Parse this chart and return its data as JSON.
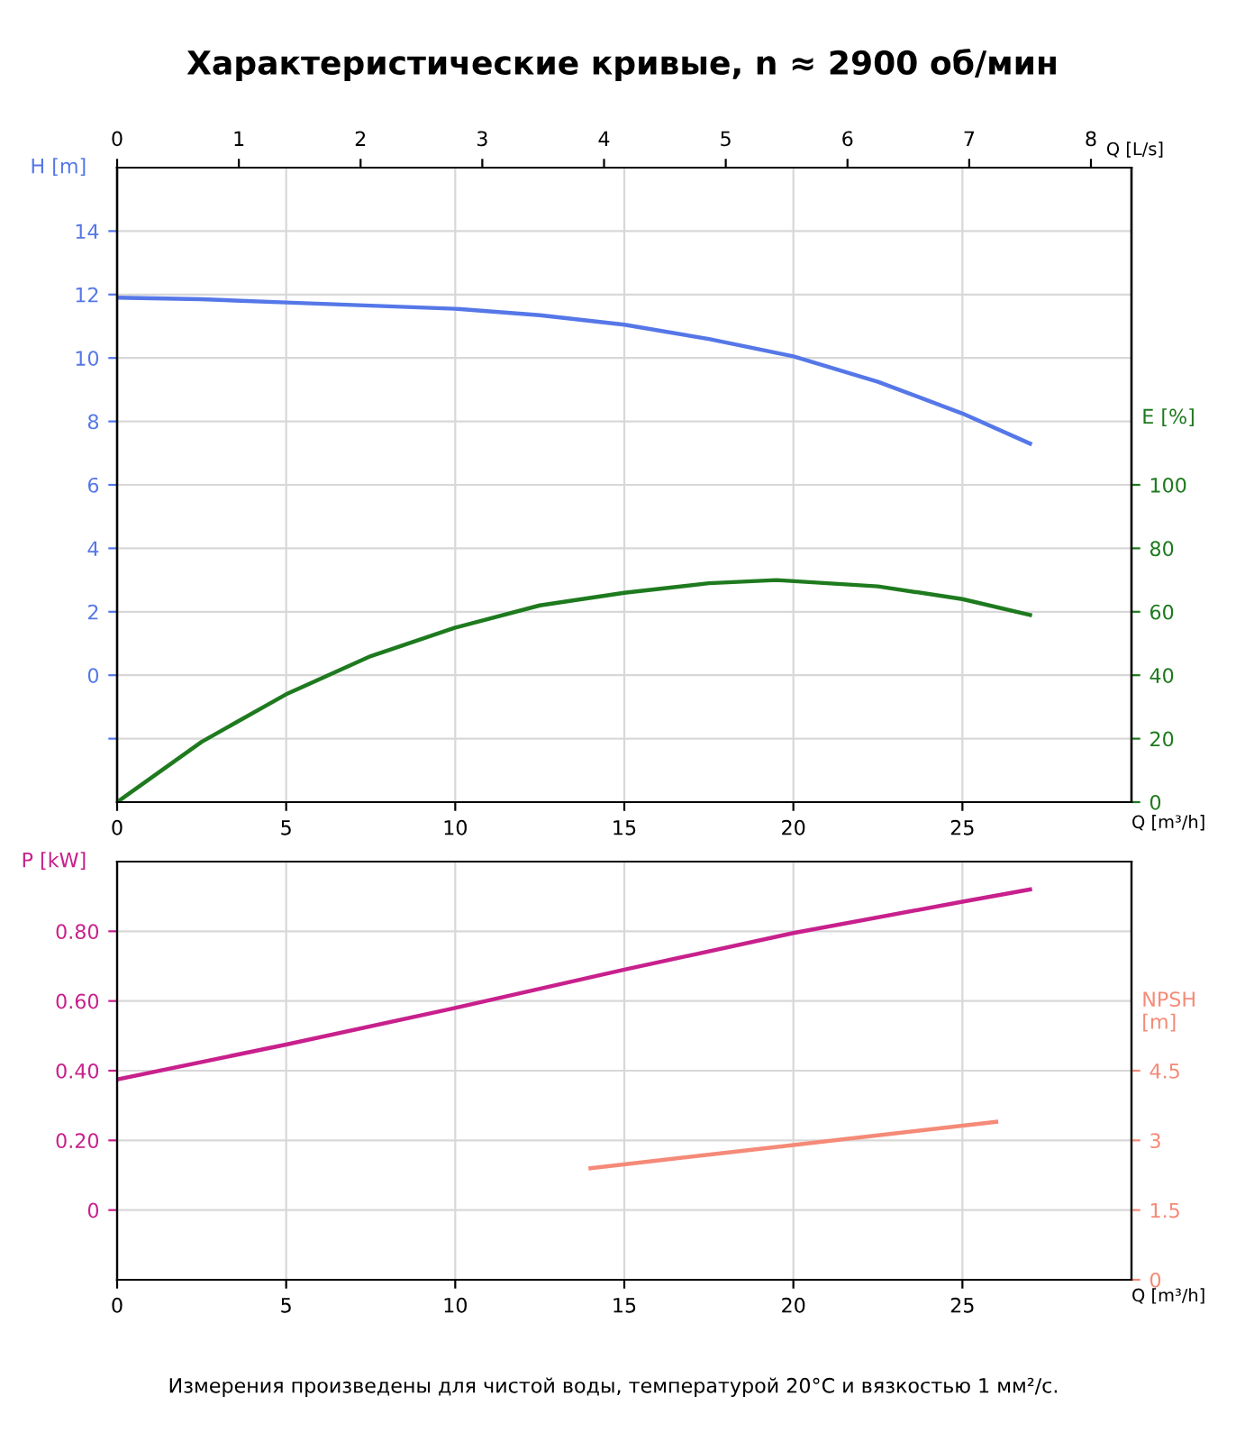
{
  "chart_data": [
    {
      "type": "line",
      "title": "Характеристические кривые, n ≈ 2900 об/мин",
      "xlabel": "Q [m³/h]",
      "x2label": "Q [L/s]",
      "ylabel": "H [m]",
      "y2label": "E [%]",
      "xlim": [
        0,
        30
      ],
      "xticks": [
        0,
        5,
        10,
        15,
        20,
        25
      ],
      "x2lim": [
        0,
        8.333
      ],
      "x2ticks": [
        0,
        1,
        2,
        3,
        4,
        5,
        6,
        7,
        8
      ],
      "ylim": [
        -4,
        16
      ],
      "yticks": [
        {
          "value": -2,
          "label": null
        },
        0,
        2,
        4,
        6,
        8,
        10,
        12,
        14
      ],
      "y2lim": [
        0,
        200
      ],
      "y2ticks": [
        0,
        20,
        40,
        60,
        80,
        100
      ],
      "grid": true,
      "legend": false,
      "series": [
        {
          "color": "#5577e8",
          "axis": "y",
          "x": [
            0,
            2.5,
            5,
            7.5,
            10,
            12.5,
            15,
            17.5,
            20,
            22.5,
            25,
            27
          ],
          "values": [
            11.9,
            11.85,
            11.75,
            11.65,
            11.55,
            11.35,
            11.05,
            10.6,
            10.05,
            9.25,
            8.25,
            7.3
          ]
        },
        {
          "color": "#1e7a1e",
          "axis": "y2",
          "x": [
            0,
            2.5,
            5,
            7.5,
            10,
            12.5,
            15,
            17.5,
            19.5,
            22.5,
            25,
            27
          ],
          "values": [
            0,
            19,
            34,
            46,
            55,
            62,
            66,
            69,
            70,
            68,
            64,
            59
          ]
        }
      ]
    },
    {
      "type": "line",
      "xlabel": "Q [m³/h]",
      "ylabel": "P [kW]",
      "y2label": "NPSH\n[m]",
      "xlim": [
        0,
        30
      ],
      "xticks": [
        0,
        5,
        10,
        15,
        20,
        25
      ],
      "ylim": [
        -0.2,
        1.0
      ],
      "yticks": [
        0,
        {
          "value": 0.2,
          "label": "0.20"
        },
        {
          "value": 0.4,
          "label": "0.40"
        },
        {
          "value": 0.6,
          "label": "0.60"
        },
        {
          "value": 0.8,
          "label": "0.80"
        }
      ],
      "y2lim": [
        0,
        9
      ],
      "y2ticks": [
        0,
        1.5,
        3,
        4.5
      ],
      "grid": true,
      "legend": false,
      "annotations": [
        "Измерения произведены для чистой воды, температурой 20°C и вязкостью 1 мм²/с."
      ],
      "series": [
        {
          "color": "#c8208c",
          "axis": "y",
          "x": [
            0,
            5,
            10,
            15,
            20,
            25,
            27
          ],
          "values": [
            0.375,
            0.475,
            0.58,
            0.69,
            0.795,
            0.885,
            0.92
          ]
        },
        {
          "color": "#f58a78",
          "axis": "y2",
          "x": [
            14,
            20,
            26
          ],
          "values": [
            2.4,
            2.9,
            3.4
          ]
        }
      ]
    }
  ]
}
